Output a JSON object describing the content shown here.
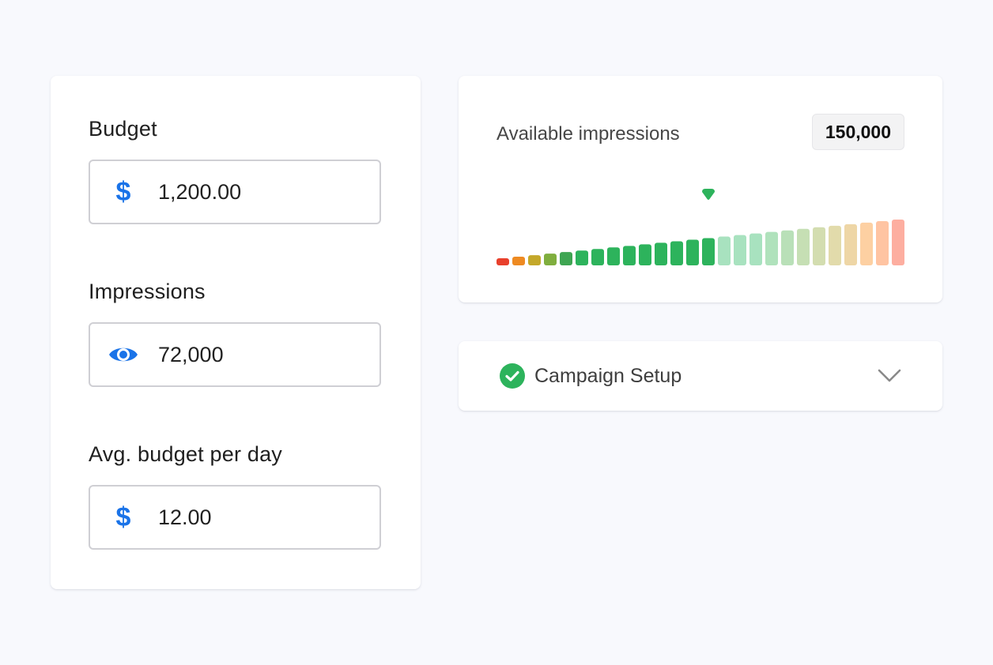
{
  "form": {
    "budget": {
      "label": "Budget",
      "value": "1,200.00",
      "icon": "dollar-icon",
      "icon_glyph": "$"
    },
    "impressions": {
      "label": "Impressions",
      "value": "72,000",
      "icon": "eye-icon"
    },
    "avg_per_day": {
      "label": "Avg. budget per day",
      "value": "12.00",
      "icon": "dollar-icon",
      "icon_glyph": "$"
    }
  },
  "availability": {
    "label": "Available impressions",
    "value": "150,000",
    "meter": {
      "bar_count": 26,
      "marker_index": 13,
      "bar_colors": [
        "#e8402c",
        "#ee8a22",
        "#c4a82a",
        "#7fae3e",
        "#3ea552",
        "#2db35c",
        "#2db35c",
        "#2db35c",
        "#2db35c",
        "#2db35c",
        "#2db35c",
        "#2db35c",
        "#2db35c",
        "#2db35c",
        "#a8e2bf",
        "#a8e2bf",
        "#a8e2bf",
        "#b0e2bc",
        "#b9e0b8",
        "#c6dfb4",
        "#d3ddb0",
        "#e2dbab",
        "#eed6a6",
        "#fdd0a2",
        "#ffc4a2",
        "#fdaea0"
      ],
      "marker_color": "#2db35c"
    }
  },
  "setup": {
    "label": "Campaign Setup",
    "status_icon": "check-circle-icon",
    "status_color": "#2db35c",
    "toggle_icon": "chevron-down-icon"
  },
  "theme": {
    "accent": "#1a73e8",
    "success": "#2db35c",
    "background": "#f8f9fd"
  }
}
